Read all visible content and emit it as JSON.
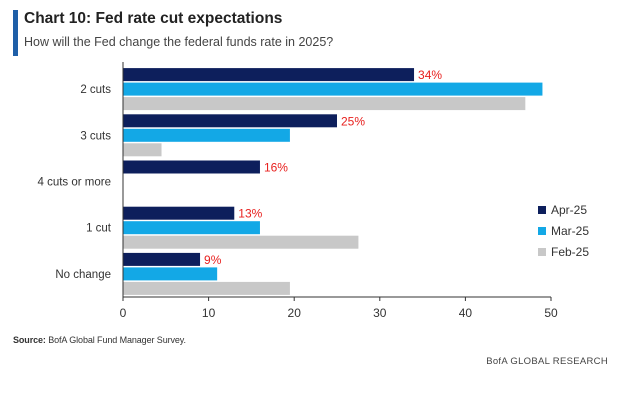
{
  "header": {
    "title": "Chart 10: Fed rate cut expectations",
    "subtitle": "How will the Fed change the federal funds rate in 2025?"
  },
  "footer": {
    "source_label": "Source:",
    "source_text": "BofA Global Fund Manager Survey.",
    "brand": "BofA GLOBAL RESEARCH"
  },
  "colors": {
    "apr": "#0d1f5c",
    "mar": "#13a8e6",
    "feb": "#c8c8c8",
    "label_red": "#e8211f",
    "accent": "#1f5fa8"
  },
  "chart_data": {
    "type": "bar",
    "orientation": "horizontal",
    "categories": [
      "2 cuts",
      "3 cuts",
      "4 cuts or more",
      "1 cut",
      "No change"
    ],
    "series": [
      {
        "name": "Apr-25",
        "values": [
          34,
          25,
          16,
          13,
          9
        ],
        "data_labels": [
          "34%",
          "25%",
          "16%",
          "13%",
          "9%"
        ]
      },
      {
        "name": "Mar-25",
        "values": [
          49,
          19.5,
          0,
          16,
          11
        ],
        "data_labels": []
      },
      {
        "name": "Feb-25",
        "values": [
          47,
          4.5,
          0,
          27.5,
          19.5
        ],
        "data_labels": []
      }
    ],
    "xlim": [
      0,
      50
    ],
    "xticks": [
      "0",
      "10",
      "20",
      "30",
      "40",
      "50"
    ],
    "grid": false,
    "legend_position": "right"
  }
}
